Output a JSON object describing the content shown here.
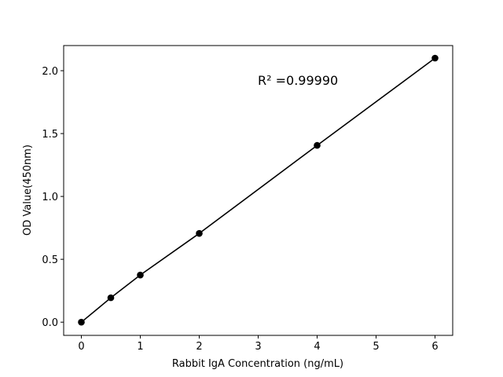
{
  "chart_data": {
    "type": "line",
    "annotation": "R² =0.99990",
    "x_label": "Rabbit IgA Concentration (ng/mL)",
    "y_label": "OD Value(450nm)",
    "x": [
      0,
      0.5,
      1,
      2,
      4,
      6
    ],
    "series": [
      {
        "color": "#000000",
        "values": [
          0.0,
          0.194,
          0.375,
          0.706,
          1.406,
          2.1
        ]
      }
    ],
    "xlim": [
      -0.3,
      6.3
    ],
    "ylim": [
      -0.105,
      2.2
    ],
    "xticks": [
      0,
      1,
      2,
      3,
      4,
      5,
      6
    ],
    "yticks": [
      {
        "value": 0,
        "label": "0.0"
      },
      {
        "value": 0.5,
        "label": "0.5"
      },
      {
        "value": 1,
        "label": "1.0"
      },
      {
        "value": 1.5,
        "label": "1.5"
      },
      {
        "value": 2,
        "label": "2.0"
      }
    ],
    "markers": true
  }
}
